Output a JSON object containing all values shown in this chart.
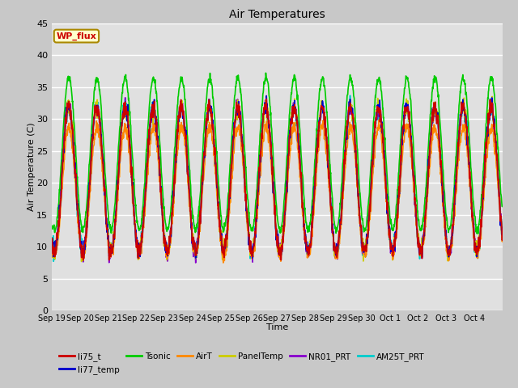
{
  "title": "Air Temperatures",
  "xlabel": "Time",
  "ylabel": "Air Temperature (C)",
  "ylim": [
    0,
    45
  ],
  "yticks": [
    0,
    5,
    10,
    15,
    20,
    25,
    30,
    35,
    40,
    45
  ],
  "x_labels": [
    "Sep 19",
    "Sep 20",
    "Sep 21",
    "Sep 22",
    "Sep 23",
    "Sep 24",
    "Sep 25",
    "Sep 26",
    "Sep 27",
    "Sep 28",
    "Sep 29",
    "Sep 30",
    "Oct 1",
    "Oct 2",
    "Oct 3",
    "Oct 4"
  ],
  "series": {
    "li75_t": {
      "color": "#cc0000",
      "lw": 1.2
    },
    "li77_temp": {
      "color": "#0000cc",
      "lw": 1.2
    },
    "Tsonic": {
      "color": "#00cc00",
      "lw": 1.2
    },
    "AirT": {
      "color": "#ff8800",
      "lw": 1.2
    },
    "PanelTemp": {
      "color": "#cccc00",
      "lw": 1.2
    },
    "NR01_PRT": {
      "color": "#8800cc",
      "lw": 1.2
    },
    "AM25T_PRT": {
      "color": "#00cccc",
      "lw": 1.2
    }
  },
  "legend_box": {
    "text": "WP_flux",
    "facecolor": "#ffffcc",
    "edgecolor": "#aa8800",
    "textcolor": "#cc0000"
  },
  "fig_facecolor": "#c8c8c8",
  "ax_facecolor": "#e0e0e0",
  "n_days": 16,
  "pts_per_day": 96
}
